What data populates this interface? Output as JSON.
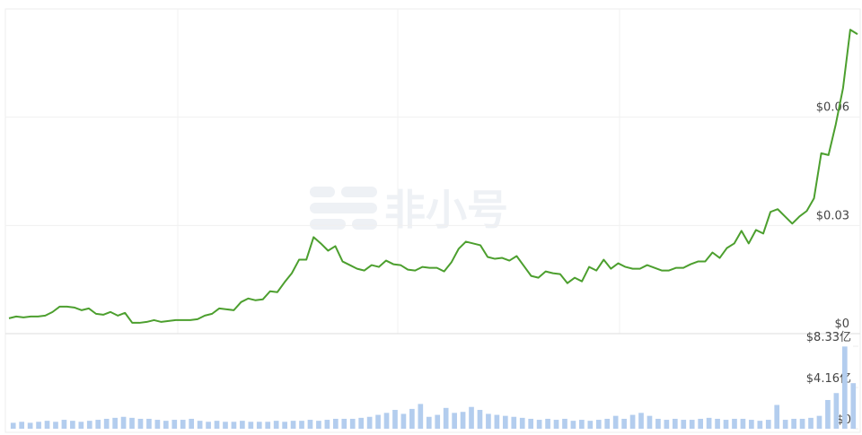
{
  "chart_data": {
    "type": "line",
    "watermark": "非小号",
    "series": [
      {
        "color": "#4c9f2e",
        "values": [
          0.00425,
          0.00475,
          0.0045,
          0.00475,
          0.00475,
          0.005,
          0.006,
          0.0075,
          0.0075,
          0.00725,
          0.0065,
          0.007,
          0.0055,
          0.00525,
          0.006,
          0.005,
          0.00575,
          0.003,
          0.003,
          0.00325,
          0.00375,
          0.00325,
          0.0035,
          0.00375,
          0.00375,
          0.00375,
          0.004,
          0.005,
          0.0055,
          0.007,
          0.00675,
          0.0065,
          0.00875,
          0.00975,
          0.00925,
          0.0095,
          0.01175,
          0.0115,
          0.01425,
          0.01675,
          0.0205,
          0.0205,
          0.02675,
          0.025,
          0.023,
          0.02425,
          0.02,
          0.019,
          0.018,
          0.0175,
          0.019,
          0.0185,
          0.02025,
          0.01925,
          0.019,
          0.01775,
          0.0175,
          0.0185,
          0.01825,
          0.01825,
          0.01725,
          0.01975,
          0.0235,
          0.0255,
          0.025,
          0.0245,
          0.02125,
          0.02075,
          0.021,
          0.02025,
          0.0215,
          0.01875,
          0.016,
          0.0155,
          0.01725,
          0.01675,
          0.0165,
          0.014,
          0.0155,
          0.0145,
          0.0185,
          0.0175,
          0.0205,
          0.018,
          0.0195,
          0.0185,
          0.018,
          0.018,
          0.019,
          0.01825,
          0.0175,
          0.0175,
          0.01825,
          0.01825,
          0.01925,
          0.02,
          0.02,
          0.0225,
          0.021,
          0.02375,
          0.025,
          0.0285,
          0.025,
          0.02875,
          0.02775,
          0.03375,
          0.0345,
          0.0325,
          0.0305,
          0.0325,
          0.034,
          0.0375,
          0.05,
          0.0495,
          0.058,
          0.068,
          0.08425,
          0.083
        ]
      },
      {
        "color": "#b3cdee",
        "axis": "y2",
        "values": [
          0.6,
          0.7,
          0.6,
          0.7,
          0.8,
          0.7,
          0.9,
          0.8,
          0.7,
          0.8,
          0.9,
          1.0,
          1.1,
          1.2,
          1.1,
          1.0,
          1.0,
          0.9,
          0.8,
          0.9,
          0.9,
          1.0,
          0.8,
          0.7,
          0.8,
          0.7,
          0.7,
          0.8,
          0.7,
          0.7,
          0.7,
          0.8,
          0.7,
          0.8,
          0.8,
          0.9,
          0.8,
          0.9,
          1.0,
          1.0,
          1.0,
          1.1,
          1.2,
          1.4,
          1.6,
          1.9,
          1.5,
          2.0,
          2.5,
          1.2,
          1.4,
          2.1,
          1.6,
          1.7,
          2.2,
          1.9,
          1.5,
          1.4,
          1.3,
          1.2,
          1.1,
          1.0,
          0.9,
          1.0,
          0.9,
          1.0,
          0.8,
          0.9,
          0.8,
          0.9,
          1.0,
          1.3,
          1.0,
          1.4,
          1.6,
          1.3,
          1.0,
          0.9,
          1.0,
          0.9,
          0.9,
          1.0,
          1.1,
          1.0,
          0.9,
          1.0,
          1.0,
          0.9,
          0.8,
          0.9,
          2.4,
          0.9,
          1.0,
          1.0,
          1.1,
          1.3,
          2.9,
          3.6,
          8.3,
          4.6
        ]
      }
    ],
    "ylim": [
      0,
      0.09
    ],
    "yticks": [
      {
        "value": 0,
        "label": "$0"
      },
      {
        "value": 0.03,
        "label": "$0.03"
      },
      {
        "value": 0.06,
        "label": "$0.06"
      }
    ],
    "y2lim": [
      0,
      8.33
    ],
    "y2ticks": [
      {
        "value": 0,
        "label": "$0"
      },
      {
        "value": 4.16,
        "label": "$4.16亿"
      },
      {
        "value": 8.33,
        "label": "$8.33亿"
      }
    ],
    "grid": true
  }
}
